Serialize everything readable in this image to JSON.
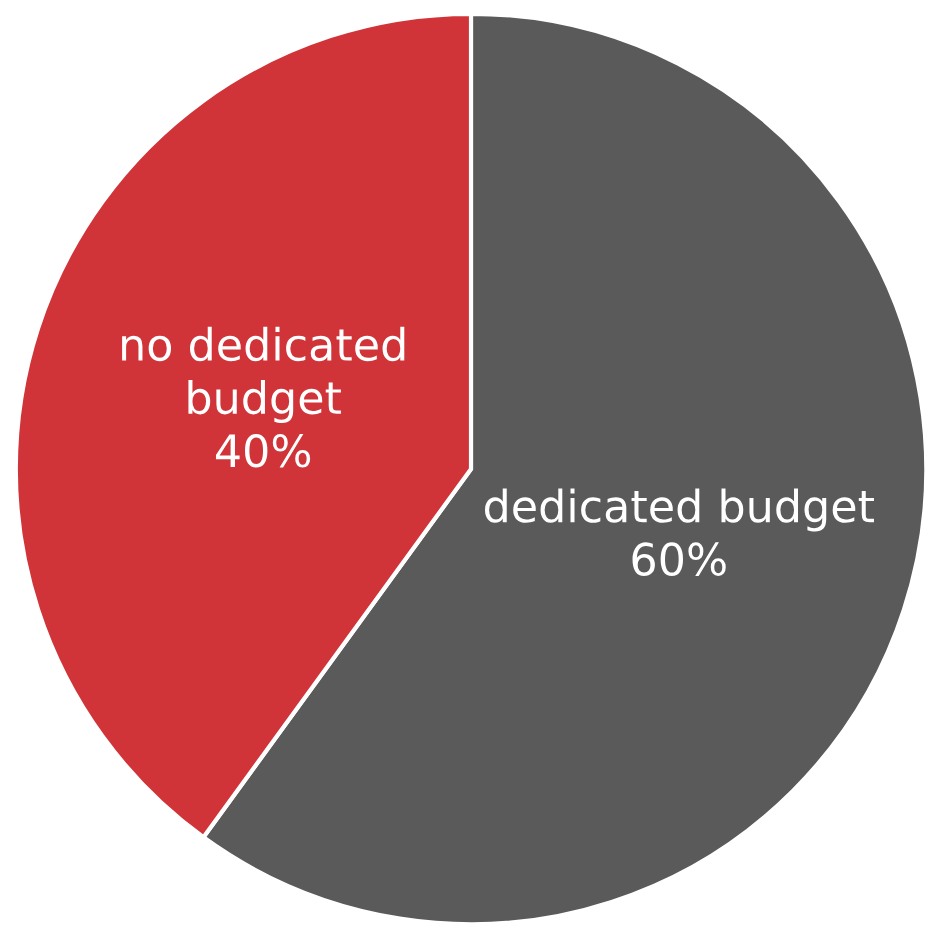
{
  "chart_data": {
    "type": "pie",
    "categories": [
      "dedicated budget",
      "no dedicated budget"
    ],
    "values": [
      60,
      40
    ],
    "colors": [
      "#5a5a5a",
      "#d03438"
    ],
    "value_labels": [
      "60%",
      "40%"
    ],
    "legend": false
  }
}
